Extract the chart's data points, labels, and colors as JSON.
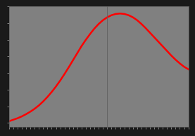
{
  "title": "",
  "background_color": "#808080",
  "plot_bg_color": "#808080",
  "outer_bg_color": "#1a1a1a",
  "line_color": "#ff0000",
  "line_width": 1.8,
  "years": [
    1961,
    1962,
    1963,
    1964,
    1965,
    1966,
    1967,
    1968,
    1969,
    1970,
    1971,
    1972,
    1973,
    1974,
    1975,
    1976,
    1977,
    1978,
    1979,
    1980,
    1981,
    1982,
    1983,
    1984,
    1985,
    1986,
    1987,
    1988,
    1989,
    1990,
    1991,
    1992,
    1993,
    1994,
    1995,
    1996,
    1997,
    1998,
    1999,
    2000,
    2001,
    2002,
    2003
  ],
  "population": [
    2200,
    2380,
    2560,
    2780,
    3050,
    3350,
    3700,
    4100,
    4580,
    5120,
    5720,
    6380,
    7100,
    7880,
    8700,
    9550,
    10400,
    11250,
    12000,
    12700,
    13350,
    13900,
    14350,
    14700,
    14950,
    15100,
    15150,
    15100,
    14950,
    14700,
    14350,
    13900,
    13400,
    12850,
    12300,
    11750,
    11200,
    10650,
    10100,
    9600,
    9150,
    8750,
    8450
  ],
  "tick_color": "#aaaaaa",
  "spine_color": "#606060",
  "xmin": 1961,
  "xmax": 2003,
  "ymin": 1500,
  "ymax": 16000,
  "vline_year": 1984,
  "tick_fontsize": 4
}
